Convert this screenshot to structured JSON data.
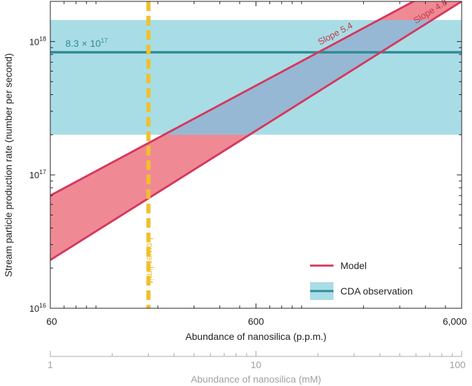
{
  "chart_data": {
    "type": "area",
    "xlabel": "Abundance of nanosilica (p.p.m.)",
    "ylabel": "Stream particle production rate (number per second)",
    "x_scale": "log",
    "y_scale": "log",
    "xlim": [
      60,
      6000
    ],
    "ylim": [
      1e+16,
      2e+18
    ],
    "x_ticks": [
      {
        "value": 60,
        "label": "60"
      },
      {
        "value": 600,
        "label": "600"
      },
      {
        "value": 6000,
        "label": "6,000"
      }
    ],
    "y_ticks": [
      {
        "value": 1e+16,
        "base": "10",
        "exp": "16"
      },
      {
        "value": 1e+17,
        "base": "10",
        "exp": "17"
      },
      {
        "value": 1e+18,
        "base": "10",
        "exp": "18"
      }
    ],
    "secondary_x_axis": {
      "label": "Abundance of nanosilica (mM)",
      "scale": "log",
      "xlim": [
        1,
        100
      ],
      "ticks": [
        {
          "value": 1,
          "label": "1"
        },
        {
          "value": 10,
          "label": "10"
        },
        {
          "value": 100,
          "label": "100"
        }
      ]
    },
    "series": [
      {
        "name": "Model",
        "kind": "band",
        "color": "#d6385e",
        "fill": "#ef8a94",
        "upper": {
          "x": [
            60,
            3500
          ],
          "y": [
            7e+16,
            2e+18
          ]
        },
        "lower": {
          "x": [
            60,
            6000
          ],
          "y": [
            2.3e+16,
            2e+18
          ]
        }
      },
      {
        "name": "CDA observation",
        "kind": "band",
        "color": "#2e8a96",
        "fill": "#a9dde5",
        "value": 8.3e+17,
        "range": [
          2e+17,
          1.45e+18
        ]
      }
    ],
    "lower_limit": {
      "x": 180,
      "color": "#f0c02c"
    },
    "annotations": {
      "cda_value": {
        "mantissa": "8.3",
        "times": "×",
        "base": "10",
        "exp": "17"
      },
      "slope_upper": "Slope 5.4",
      "slope_lower": "Slope 4.8",
      "lower_limit": "Lower limit"
    },
    "legend": {
      "placement": "bottom-right",
      "entries": [
        "Model",
        "CDA observation"
      ]
    }
  }
}
